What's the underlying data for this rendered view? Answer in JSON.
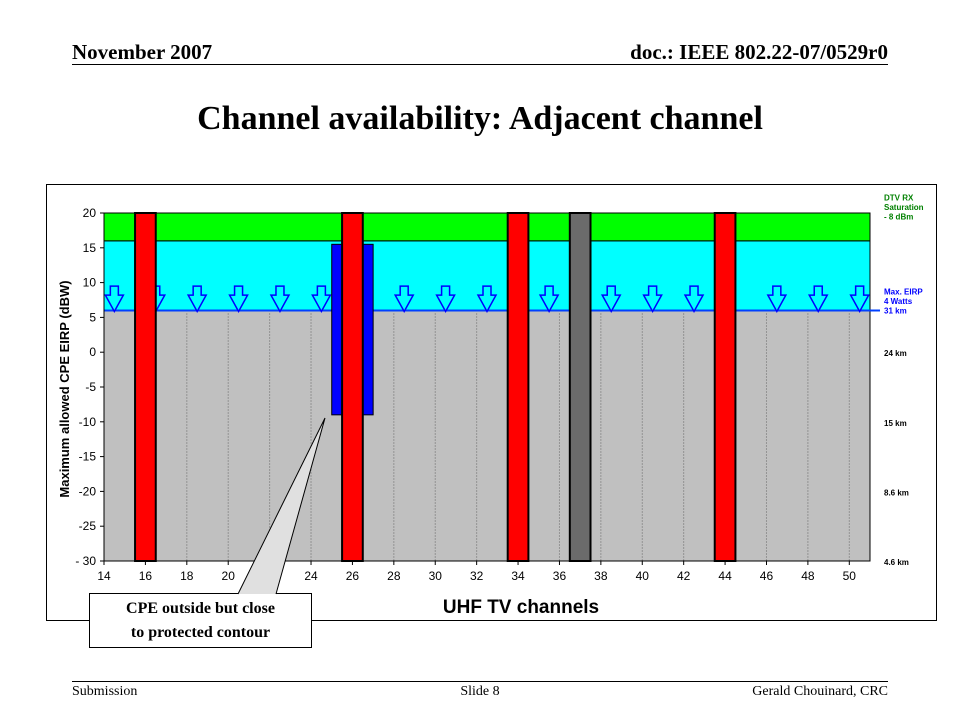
{
  "header": {
    "left": "November 2007",
    "right": "doc.: IEEE 802.22-07/0529r0"
  },
  "title": "Channel availability: Adjacent channel",
  "footer": {
    "left": "Submission",
    "center": "Slide 8",
    "right": "Gerald Chouinard, CRC"
  },
  "callout": {
    "line1": "CPE outside but close",
    "line2": "to protected contour"
  },
  "chart_data": {
    "type": "bar",
    "xlabel": "UHF TV channels",
    "ylabel": "Maximum allowed CPE EIRP (dBW)",
    "xlim": [
      14,
      51
    ],
    "ylim": [
      -30,
      20
    ],
    "x_ticks": [
      "14",
      "16",
      "18",
      "20",
      "22",
      "24",
      "26",
      "28",
      "30",
      "32",
      "34",
      "36",
      "38",
      "40",
      "42",
      "44",
      "46",
      "48",
      "50"
    ],
    "y_ticks": [
      "20",
      "15",
      "10",
      "5",
      "0",
      "-5",
      "-10",
      "-15",
      "-20",
      "-25",
      "- 30"
    ],
    "bands": [
      {
        "name": "gray",
        "from": -30,
        "to": 6,
        "color": "#c0c0c0"
      },
      {
        "name": "cyan",
        "from": 6,
        "to": 16,
        "color": "#00ffff"
      },
      {
        "name": "green",
        "from": 16,
        "to": 20,
        "color": "#00ff00"
      }
    ],
    "blue_line": 6,
    "occupied_channels": [
      {
        "channel": 16,
        "bottom": -30,
        "top": 20,
        "color": "#ff0000"
      },
      {
        "channel": 26,
        "bottom": -30,
        "top": 20,
        "color": "#ff0000"
      },
      {
        "channel": 34,
        "bottom": -30,
        "top": 20,
        "color": "#ff0000"
      },
      {
        "channel": 37,
        "bottom": -30,
        "top": 20,
        "color": "#6b6b6b"
      },
      {
        "channel": 44,
        "bottom": -30,
        "top": 20,
        "color": "#ff0000"
      }
    ],
    "restricted_channels": [
      {
        "from": 25,
        "to": 27,
        "bottom": -9,
        "top": 15.5,
        "color": "#0000ff"
      }
    ],
    "eirp_arrows_channels": [
      14.5,
      16.5,
      18.5,
      20.5,
      22.5,
      24.5,
      28.5,
      30.5,
      32.5,
      35.5,
      38.5,
      40.5,
      42.5,
      46.5,
      48.5,
      50.5
    ],
    "right_labels": [
      {
        "lines": [
          "DTV RX",
          "Saturation",
          "- 8 dBm"
        ],
        "color": "#008000"
      },
      {
        "lines": [
          "Max. EIRP",
          "4 Watts",
          "31 km"
        ],
        "color": "#0000ff"
      },
      {
        "lines": [
          "24 km"
        ],
        "color": "#000000"
      },
      {
        "lines": [
          "15 km"
        ],
        "color": "#000000"
      },
      {
        "lines": [
          "8.6 km"
        ],
        "color": "#000000"
      },
      {
        "lines": [
          "4.6 km"
        ],
        "color": "#000000"
      }
    ]
  }
}
